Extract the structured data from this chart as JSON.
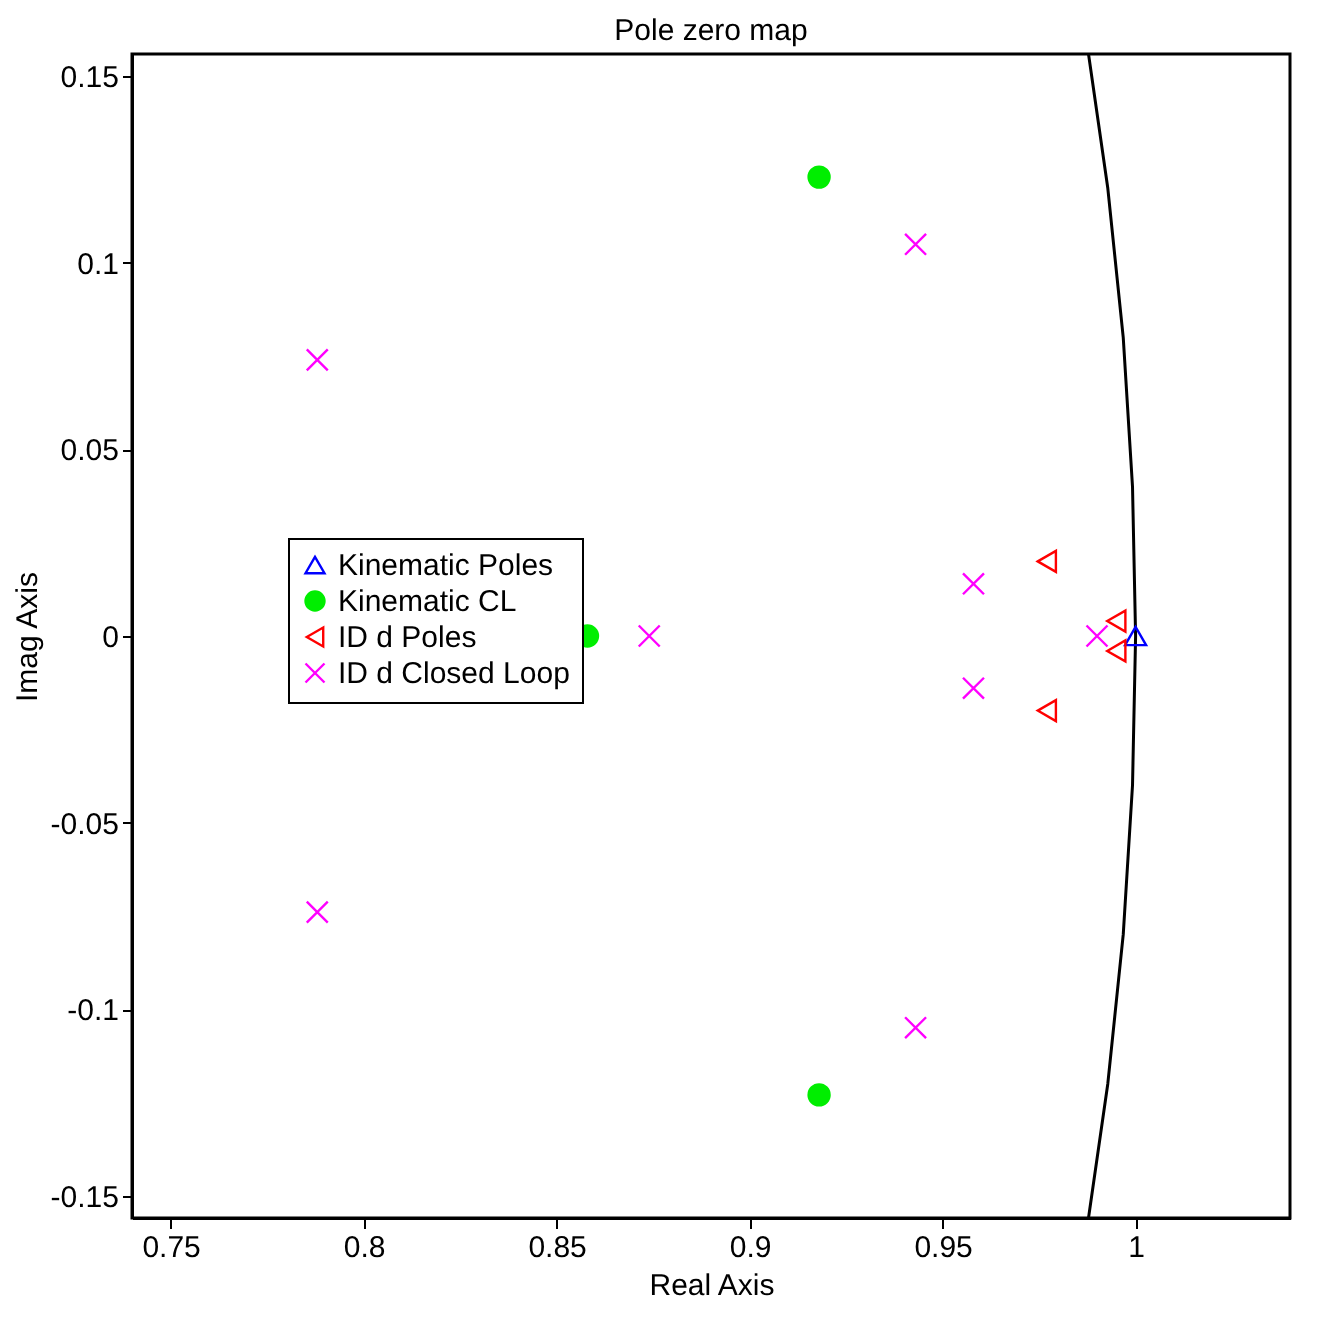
{
  "chart_data": {
    "type": "scatter",
    "title": "Pole zero map",
    "xlabel": "Real Axis",
    "ylabel": "Imag Axis",
    "xlim": [
      0.74,
      1.04
    ],
    "ylim": [
      -0.156,
      0.156
    ],
    "xticks": [
      0.75,
      0.8,
      0.85,
      0.9,
      0.95,
      1
    ],
    "yticks": [
      -0.15,
      -0.1,
      -0.05,
      0,
      0.05,
      0.1,
      0.15
    ],
    "grid": false,
    "legend": "left",
    "series": [
      {
        "type": "line",
        "color": "#000000",
        "line_style": "solid",
        "x": [
          0.9878,
          0.9928,
          0.9968,
          0.9992,
          1,
          0.9992,
          0.9968,
          0.9928,
          0.9878
        ],
        "values": [
          -0.156,
          -0.12,
          -0.08,
          -0.04,
          0,
          0.04,
          0.08,
          0.12,
          0.156
        ]
      },
      {
        "name": "Kinematic Poles",
        "color": "#0000ff",
        "marker": "triangle",
        "x": [
          1
        ],
        "values": [
          0
        ]
      },
      {
        "name": "Kinematic CL",
        "color": "#00ee00",
        "marker": "circle",
        "x": [
          0.858,
          0.918,
          0.918
        ],
        "values": [
          0,
          0.123,
          -0.123
        ]
      },
      {
        "name": "ID d Poles",
        "color": "#ff0000",
        "marker": "triangle-left",
        "x": [
          0.977,
          0.977,
          0.995,
          0.995
        ],
        "values": [
          0.02,
          -0.02,
          0.004,
          -0.004
        ]
      },
      {
        "name": "ID d Closed Loop",
        "color": "#ff00ff",
        "marker": "cross",
        "x": [
          0.788,
          0.788,
          0.874,
          0.943,
          0.943,
          0.958,
          0.958,
          0.99
        ],
        "values": [
          0.074,
          -0.074,
          0,
          0.105,
          -0.105,
          0.014,
          -0.014,
          0
        ]
      }
    ]
  }
}
